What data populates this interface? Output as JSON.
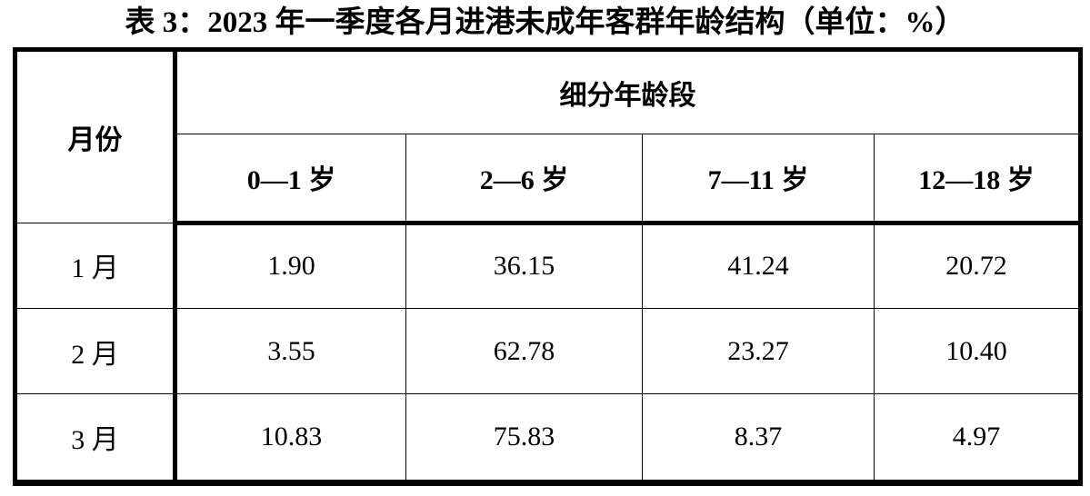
{
  "title": "表 3：2023 年一季度各月进港未成年客群年龄结构（单位：%）",
  "table": {
    "month_header": "月份",
    "group_header": "细分年龄段",
    "age_columns": [
      "0—1 岁",
      "2—6 岁",
      "7—11 岁",
      "12—18 岁"
    ],
    "rows": [
      {
        "month": "1 月",
        "values": [
          "1.90",
          "36.15",
          "41.24",
          "20.72"
        ]
      },
      {
        "month": "2 月",
        "values": [
          "3.55",
          "62.78",
          "23.27",
          "10.40"
        ]
      },
      {
        "month": "3 月",
        "values": [
          "10.83",
          "75.83",
          "8.37",
          "4.97"
        ]
      }
    ]
  },
  "colors": {
    "text": "#000000",
    "background": "#ffffff",
    "border": "#000000"
  },
  "chart_data": {
    "type": "table",
    "title": "表 3：2023 年一季度各月进港未成年客群年龄结构（单位：%）",
    "unit": "%",
    "columns": [
      "月份",
      "0—1 岁",
      "2—6 岁",
      "7—11 岁",
      "12—18 岁"
    ],
    "rows": [
      [
        "1 月",
        1.9,
        36.15,
        41.24,
        20.72
      ],
      [
        "2 月",
        3.55,
        62.78,
        23.27,
        10.4
      ],
      [
        "3 月",
        10.83,
        75.83,
        8.37,
        4.97
      ]
    ]
  }
}
